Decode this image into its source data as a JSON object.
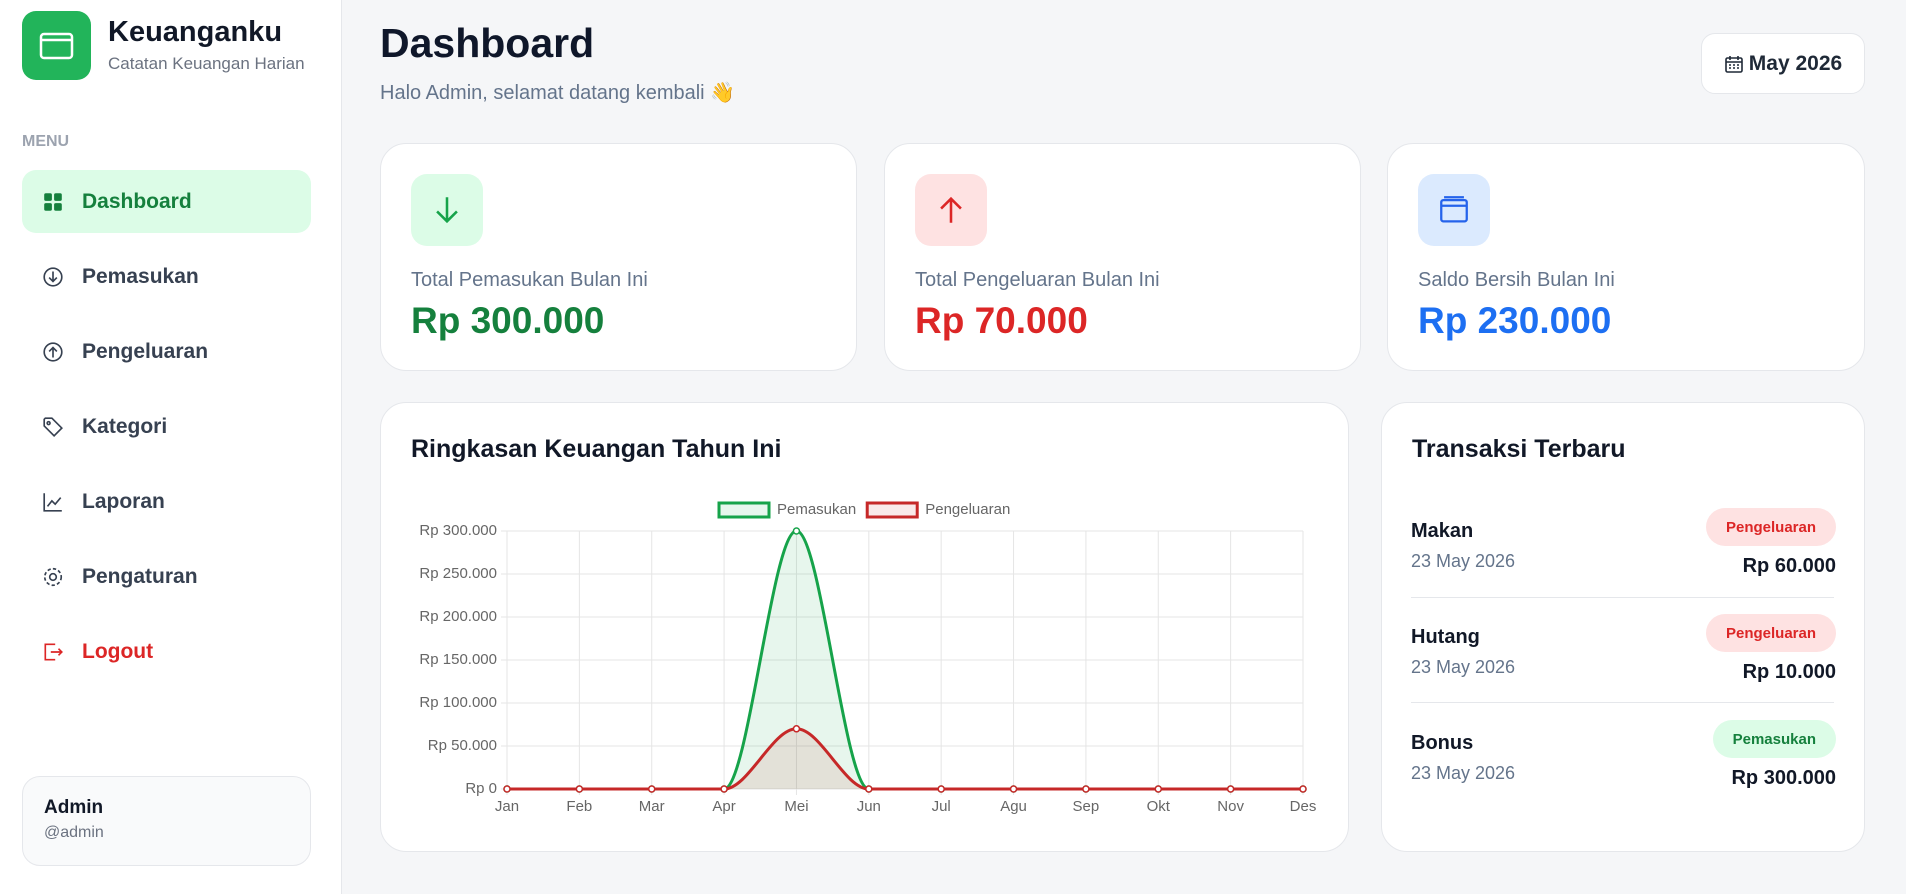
{
  "sidebar": {
    "brand": "Keuanganku",
    "tagline": "Catatan Keuangan Harian",
    "menu_label": "MENU",
    "nav": [
      "Dashboard",
      "Pemasukan",
      "Pengeluaran",
      "Kategori",
      "Laporan",
      "Pengaturan"
    ],
    "logout": "Logout",
    "user": {
      "name": "Admin",
      "handle": "@admin"
    }
  },
  "header": {
    "title": "Dashboard",
    "subtitle": "Halo Admin, selamat datang kembali 👋",
    "period": "May 2026"
  },
  "cards": [
    {
      "label": "Total Pemasukan Bulan Ini",
      "value": "Rp 300.000"
    },
    {
      "label": "Total Pengeluaran Bulan Ini",
      "value": "Rp 70.000"
    },
    {
      "label": "Saldo Bersih Bulan Ini",
      "value": "Rp 230.000"
    }
  ],
  "chart_data": {
    "type": "line",
    "title": "Ringkasan Keuangan Tahun Ini",
    "categories": [
      "Jan",
      "Feb",
      "Mar",
      "Apr",
      "Mei",
      "Jun",
      "Jul",
      "Agu",
      "Sep",
      "Okt",
      "Nov",
      "Des"
    ],
    "series": [
      {
        "name": "Pemasukan",
        "color": "#16a34a",
        "values": [
          0,
          0,
          0,
          0,
          300000,
          0,
          0,
          0,
          0,
          0,
          0,
          0
        ]
      },
      {
        "name": "Pengeluaran",
        "color": "#c62828",
        "values": [
          0,
          0,
          0,
          0,
          70000,
          0,
          0,
          0,
          0,
          0,
          0,
          0
        ]
      }
    ],
    "ylim": [
      0,
      300000
    ],
    "yticks": [
      {
        "value": 0,
        "label": "Rp 0"
      },
      {
        "value": 50000,
        "label": "Rp 50.000"
      },
      {
        "value": 100000,
        "label": "Rp 100.000"
      },
      {
        "value": 150000,
        "label": "Rp 150.000"
      },
      {
        "value": 200000,
        "label": "Rp 200.000"
      },
      {
        "value": 250000,
        "label": "Rp 250.000"
      },
      {
        "value": 300000,
        "label": "Rp 300.000"
      }
    ],
    "grid": true,
    "legend": "top"
  },
  "transactions": {
    "title": "Transaksi Terbaru",
    "items": [
      {
        "name": "Makan",
        "date": "23 May 2026",
        "type": "Pengeluaran",
        "amount": "Rp 60.000"
      },
      {
        "name": "Hutang",
        "date": "23 May 2026",
        "type": "Pengeluaran",
        "amount": "Rp 10.000"
      },
      {
        "name": "Bonus",
        "date": "23 May 2026",
        "type": "Pemasukan",
        "amount": "Rp 300.000"
      }
    ]
  }
}
